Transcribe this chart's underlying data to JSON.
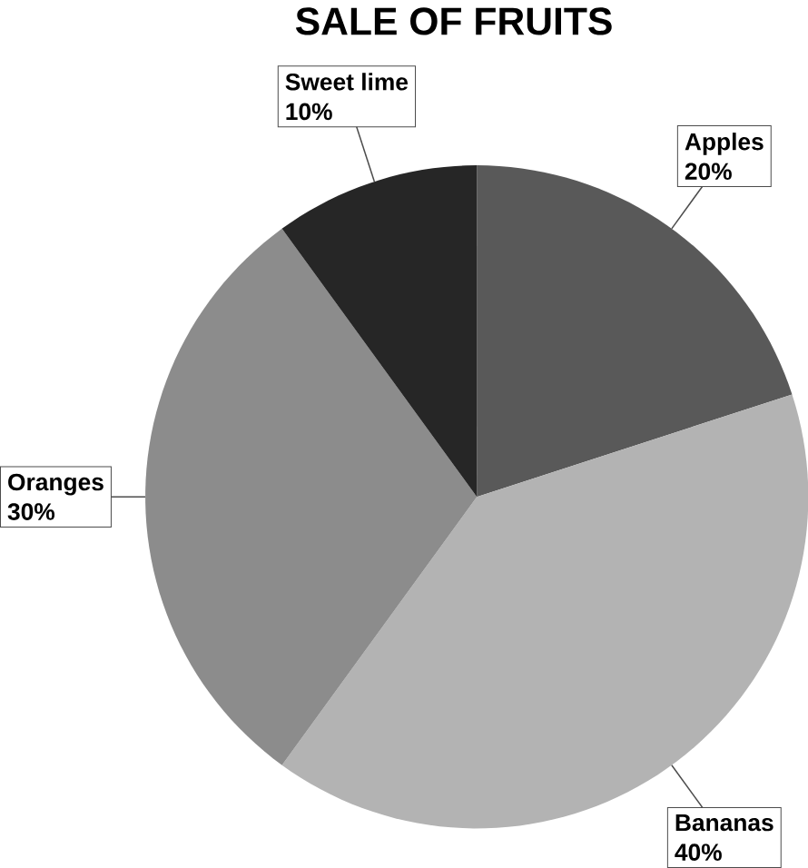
{
  "chart_data": {
    "type": "pie",
    "title": "SALE OF FRUITS",
    "categories": [
      "Apples",
      "Bananas",
      "Oranges",
      "Sweet lime"
    ],
    "values": [
      20,
      40,
      30,
      10
    ],
    "value_labels": [
      "20%",
      "40%",
      "30%",
      "10%"
    ],
    "colors": [
      "#595959",
      "#b3b3b3",
      "#8c8c8c",
      "#262626"
    ]
  }
}
